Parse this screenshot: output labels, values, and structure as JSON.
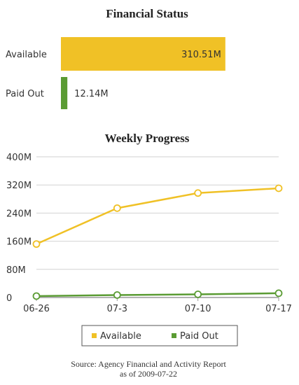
{
  "colors": {
    "available": "#f0c126",
    "paid_out": "#5a9b33",
    "grid": "#d2d2d2",
    "axis": "#999999",
    "bar_value_text": "#333333"
  },
  "chart_data": [
    {
      "type": "bar",
      "orientation": "horizontal",
      "title": "Financial Status",
      "categories": [
        "Available",
        "Paid Out"
      ],
      "values": [
        310.51,
        12.14
      ],
      "value_labels": [
        "310.51M",
        "12.14M"
      ],
      "unit": "M",
      "xlim": [
        0,
        320
      ]
    },
    {
      "type": "line",
      "title": "Weekly Progress",
      "x": [
        "06-26",
        "07-3",
        "07-10",
        "07-17"
      ],
      "ylim": [
        0,
        400
      ],
      "y_ticks": [
        0,
        80,
        160,
        240,
        320,
        400
      ],
      "y_tick_labels": [
        "0",
        "80M",
        "160M",
        "240M",
        "320M",
        "400M"
      ],
      "grid": "horizontal",
      "legend_position": "bottom",
      "series": [
        {
          "name": "Available",
          "color_key": "available",
          "values": [
            152,
            254,
            297,
            310.51
          ]
        },
        {
          "name": "Paid Out",
          "color_key": "paid_out",
          "values": [
            4,
            7,
            9,
            12.14
          ]
        }
      ]
    }
  ],
  "source": {
    "line1": "Source: Agency Financial and Activity Report",
    "line2": "as of 2009-07-22"
  }
}
